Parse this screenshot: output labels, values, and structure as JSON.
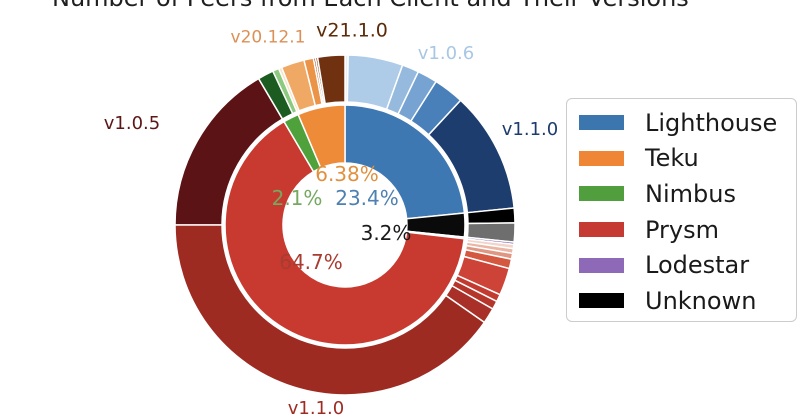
{
  "chart_data": {
    "type": "pie",
    "subtype": "nested-donut",
    "title": "Number of Peers from Each Client and Their Versions",
    "legend_position": "right",
    "inner_ring": [
      {
        "name": "Lighthouse",
        "value": 23.4,
        "label": "23.4%",
        "color": "#3e78b2"
      },
      {
        "name": "Unknown",
        "value": 3.2,
        "label": "3.2%",
        "color": "#0a0a0a"
      },
      {
        "name": "Lodestar",
        "value": 0.22,
        "label": "",
        "color": "#8d69b8"
      },
      {
        "name": "Prysm",
        "value": 64.68,
        "label": "64.7%",
        "color": "#c83a30"
      },
      {
        "name": "Nimbus",
        "value": 2.1,
        "label": "2.1%",
        "color": "#4fa13c"
      },
      {
        "name": "Teku",
        "value": 6.38,
        "label": "6.38%",
        "color": "#ee8b38"
      }
    ],
    "outer_ring": [
      {
        "client": "Lighthouse",
        "version": "",
        "value": 0.3,
        "color": "#e9eff7"
      },
      {
        "client": "Lighthouse",
        "version": "v1.0.6",
        "value": 5.2,
        "color": "#aecbe8"
      },
      {
        "client": "Lighthouse",
        "version": "",
        "value": 1.6,
        "color": "#95bade"
      },
      {
        "client": "Lighthouse",
        "version": "",
        "value": 1.9,
        "color": "#76a3d1"
      },
      {
        "client": "Lighthouse",
        "version": "",
        "value": 2.9,
        "color": "#4a80ba"
      },
      {
        "client": "Lighthouse",
        "version": "v1.1.0",
        "value": 11.5,
        "color": "#1c3d6e"
      },
      {
        "client": "Unknown",
        "version": "",
        "value": 1.4,
        "color": "#000000"
      },
      {
        "client": "Unknown",
        "version": "",
        "value": 1.8,
        "color": "#6e6e6e"
      },
      {
        "client": "Lodestar",
        "version": "",
        "value": 0.22,
        "color": "#8d69b8"
      },
      {
        "client": "Prysm",
        "version": "",
        "value": 0.4,
        "color": "#f2d4c9"
      },
      {
        "client": "Prysm",
        "version": "",
        "value": 0.45,
        "color": "#eab5a4"
      },
      {
        "client": "Prysm",
        "version": "",
        "value": 0.55,
        "color": "#df9683"
      },
      {
        "client": "Prysm",
        "version": "",
        "value": 0.9,
        "color": "#d4573f"
      },
      {
        "client": "Prysm",
        "version": "",
        "value": 2.6,
        "color": "#cd4337"
      },
      {
        "client": "Prysm",
        "version": "",
        "value": 0.7,
        "color": "#c23a30"
      },
      {
        "client": "Prysm",
        "version": "",
        "value": 0.8,
        "color": "#b5352b"
      },
      {
        "client": "Prysm",
        "version": "",
        "value": 1.48,
        "color": "#a93028"
      },
      {
        "client": "Prysm",
        "version": "v1.1.0",
        "value": 40.3,
        "color": "#9e2b22"
      },
      {
        "client": "Prysm",
        "version": "v1.0.5",
        "value": 16.5,
        "color": "#5c1315"
      },
      {
        "client": "Nimbus",
        "version": "",
        "value": 1.5,
        "color": "#1d5c21"
      },
      {
        "client": "Nimbus",
        "version": "",
        "value": 0.6,
        "color": "#8ccb7f"
      },
      {
        "client": "Teku",
        "version": "",
        "value": 0.3,
        "color": "#f7e3c8"
      },
      {
        "client": "Teku",
        "version": "v20.12.1",
        "value": 2.2,
        "color": "#f0a965"
      },
      {
        "client": "Teku",
        "version": "",
        "value": 0.9,
        "color": "#eb9347"
      },
      {
        "client": "Teku",
        "version": "",
        "value": 0.2,
        "color": "#a34a14"
      },
      {
        "client": "Teku",
        "version": "",
        "value": 0.2,
        "color": "#8a3d0f"
      },
      {
        "client": "Teku",
        "version": "v21.1.0",
        "value": 2.58,
        "color": "#6f3110"
      }
    ],
    "center_labels": [
      {
        "text": "6.38%",
        "color": "#e0913f"
      },
      {
        "text": "2.1%",
        "color": "#74a95f"
      },
      {
        "text": "23.4%",
        "color": "#4e80b1"
      },
      {
        "text": "3.2%",
        "color": "#1a1a1a"
      },
      {
        "text": "64.7%",
        "color": "#a93b30"
      }
    ],
    "version_labels": [
      {
        "text": "v20.12.1",
        "color": "#dc9055"
      },
      {
        "text": "v21.1.0",
        "color": "#5c2a07"
      },
      {
        "text": "v1.0.6",
        "color": "#a9c7e5"
      },
      {
        "text": "v1.1.0",
        "color": "#1d3c6d"
      },
      {
        "text": "v1.0.5",
        "color": "#5c1717"
      },
      {
        "text": "v1.1.0",
        "color": "#9e2b22"
      }
    ]
  },
  "legend": {
    "items": [
      {
        "label": "Lighthouse",
        "color": "#3c76af"
      },
      {
        "label": "Teku",
        "color": "#ef8636"
      },
      {
        "label": "Nimbus",
        "color": "#519e3e"
      },
      {
        "label": "Prysm",
        "color": "#c53a32"
      },
      {
        "label": "Lodestar",
        "color": "#8d69b8"
      },
      {
        "label": "Unknown",
        "color": "#000000"
      }
    ]
  }
}
